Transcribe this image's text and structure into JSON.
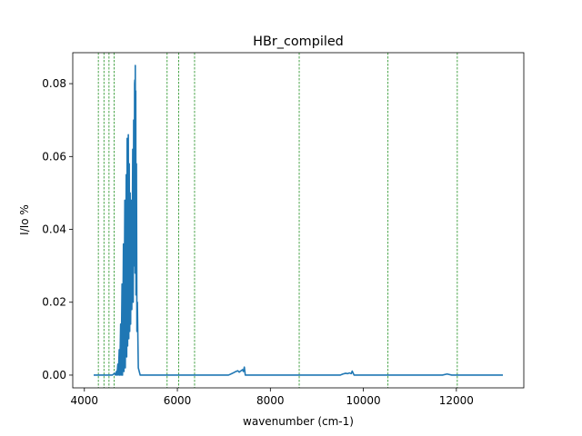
{
  "chart_data": {
    "type": "line",
    "title": "HBr_compiled",
    "xlabel": "wavenumber (cm-1)",
    "ylabel": "I/Io %",
    "xlim": [
      3750,
      13450
    ],
    "ylim": [
      -0.0035,
      0.0885
    ],
    "x_ticks": [
      4000,
      6000,
      8000,
      10000,
      12000
    ],
    "x_tick_labels": [
      "4000",
      "6000",
      "8000",
      "10000",
      "12000"
    ],
    "y_ticks": [
      0.0,
      0.02,
      0.04,
      0.06,
      0.08
    ],
    "y_tick_labels": [
      "0.00",
      "0.02",
      "0.04",
      "0.06",
      "0.08"
    ],
    "grid": false,
    "legend": "none",
    "series_color": "#1f77b4",
    "marker_line_color": "#008000",
    "marker_lines_x": [
      4300,
      4420,
      4530,
      4640,
      5780,
      6030,
      6370,
      8620,
      10530,
      12020
    ],
    "series": [
      {
        "x": [
          4200,
          4600,
          4650,
          4670,
          4690,
          4700,
          4720,
          4730,
          4750,
          4760,
          4780,
          4790,
          4810,
          4820,
          4840,
          4850,
          4870,
          4880,
          4900,
          4910,
          4920,
          4930,
          4945,
          4955,
          4965,
          4975,
          4985,
          4995,
          5010,
          5020,
          5040,
          5050,
          5060,
          5070,
          5080,
          5085,
          5090,
          5095,
          5100,
          5105,
          5110,
          5120,
          5130,
          5140,
          5160,
          5200,
          7100,
          7200,
          7260,
          7300,
          7330,
          7360,
          7400,
          7420,
          7440,
          7460,
          7500,
          9500,
          9560,
          9620,
          9660,
          9700,
          9740,
          9760,
          9800,
          11600,
          11700,
          11800,
          11900,
          13000
        ],
        "y": [
          0.0,
          0.0,
          0.0005,
          0.0,
          0.001,
          0.0,
          0.003,
          0.0,
          0.007,
          0.0,
          0.014,
          0.0,
          0.025,
          0.0,
          0.036,
          0.001,
          0.048,
          0.002,
          0.055,
          0.005,
          0.065,
          0.008,
          0.066,
          0.01,
          0.058,
          0.012,
          0.05,
          0.014,
          0.048,
          0.018,
          0.062,
          0.02,
          0.07,
          0.03,
          0.08,
          0.081,
          0.028,
          0.085,
          0.03,
          0.078,
          0.022,
          0.058,
          0.012,
          0.02,
          0.002,
          0.0,
          0.0,
          0.0006,
          0.001,
          0.0012,
          0.0008,
          0.0011,
          0.0015,
          0.001,
          0.0022,
          0.0,
          0.0,
          0.0,
          0.0003,
          0.0005,
          0.0004,
          0.0006,
          0.0004,
          0.0011,
          0.0,
          0.0,
          0.0,
          0.0003,
          0.0,
          0.0
        ]
      }
    ]
  }
}
